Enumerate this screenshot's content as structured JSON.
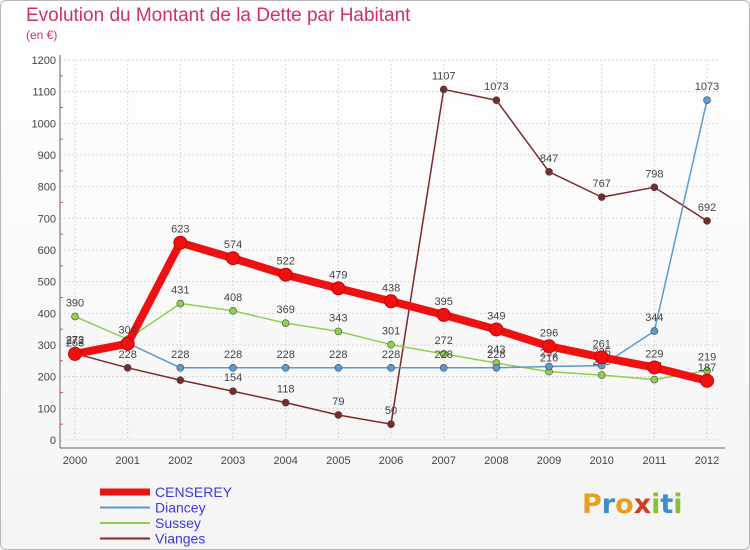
{
  "title": "Evolution du Montant de la Dette par Habitant",
  "subtitle": "(en €)",
  "logo": {
    "letters": [
      "P",
      "r",
      "o",
      "x",
      "i",
      "t",
      "i"
    ],
    "colors": [
      "#e8a020",
      "#3a8fd0",
      "#e8a020",
      "#d04020",
      "#8ac030",
      "#3a8fd0",
      "#8ac030"
    ]
  },
  "chart_data": {
    "type": "line",
    "x": [
      "2000",
      "2001",
      "2002",
      "2003",
      "2004",
      "2005",
      "2006",
      "2007",
      "2008",
      "2009",
      "2010",
      "2011",
      "2012"
    ],
    "ylim": [
      0,
      1200
    ],
    "yticks": [
      "0",
      "100",
      "200",
      "300",
      "400",
      "500",
      "600",
      "700",
      "800",
      "900",
      "1000",
      "1100",
      "1200"
    ],
    "grid": true,
    "legend_position": "bottom-left",
    "series": [
      {
        "name": "Vianges",
        "color": "#7a2a2a",
        "values": [
          273,
          228,
          189,
          154,
          118,
          79,
          50,
          1107,
          1073,
          847,
          767,
          798,
          692
        ],
        "labels": [
          "273",
          "228",
          "",
          "154",
          "118",
          "79",
          "50",
          "1107",
          "1073",
          "847",
          "767",
          "798",
          "692"
        ]
      },
      {
        "name": "Sussey",
        "color": "#90d050",
        "values": [
          390,
          318,
          431,
          408,
          369,
          343,
          301,
          272,
          243,
          216,
          205,
          191,
          219
        ],
        "labels": [
          "390",
          "",
          "431",
          "408",
          "369",
          "343",
          "301",
          "272",
          "243",
          "216",
          "205",
          "191",
          "219"
        ]
      },
      {
        "name": "Diancey",
        "color": "#5a9ad0",
        "values": [
          263,
          306,
          228,
          228,
          228,
          228,
          228,
          228,
          228,
          232,
          235,
          344,
          1073
        ],
        "labels": [
          "263",
          "",
          "228",
          "228",
          "228",
          "228",
          "228",
          "228",
          "228",
          "232",
          "235",
          "344",
          "1073"
        ]
      },
      {
        "name": "CENSEREY",
        "color": "#ee1111",
        "values": [
          272,
          304,
          623,
          574,
          522,
          479,
          438,
          395,
          349,
          296,
          261,
          229,
          187
        ],
        "labels": [
          "272",
          "304",
          "623",
          "574",
          "522",
          "479",
          "438",
          "395",
          "349",
          "296",
          "261",
          "229",
          "187"
        ]
      }
    ]
  }
}
